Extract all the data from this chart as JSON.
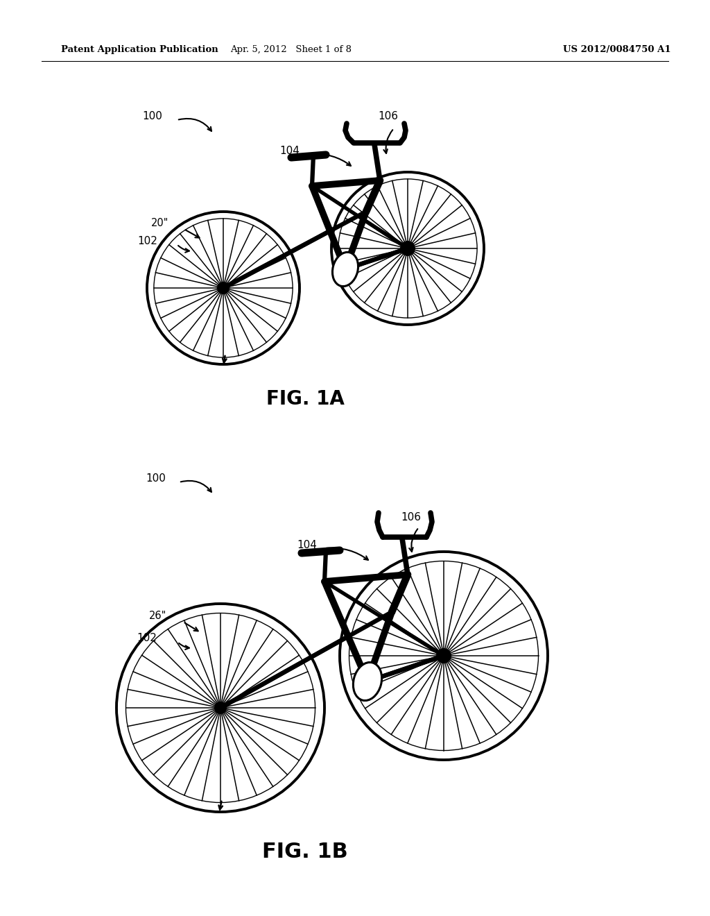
{
  "header_left": "Patent Application Publication",
  "header_mid": "Apr. 5, 2012   Sheet 1 of 8",
  "header_right": "US 2012/0084750 A1",
  "fig1a_label": "FIG. 1A",
  "fig1b_label": "FIG. 1B",
  "label_100a": "100",
  "label_102a": "102",
  "label_104a": "104",
  "label_106a": "106",
  "label_20": "20\"",
  "label_100b": "100",
  "label_102b": "102",
  "label_104b": "104",
  "label_106b": "106",
  "label_26": "26\"",
  "bg_color": "#ffffff",
  "line_color": "#000000",
  "text_color": "#000000"
}
